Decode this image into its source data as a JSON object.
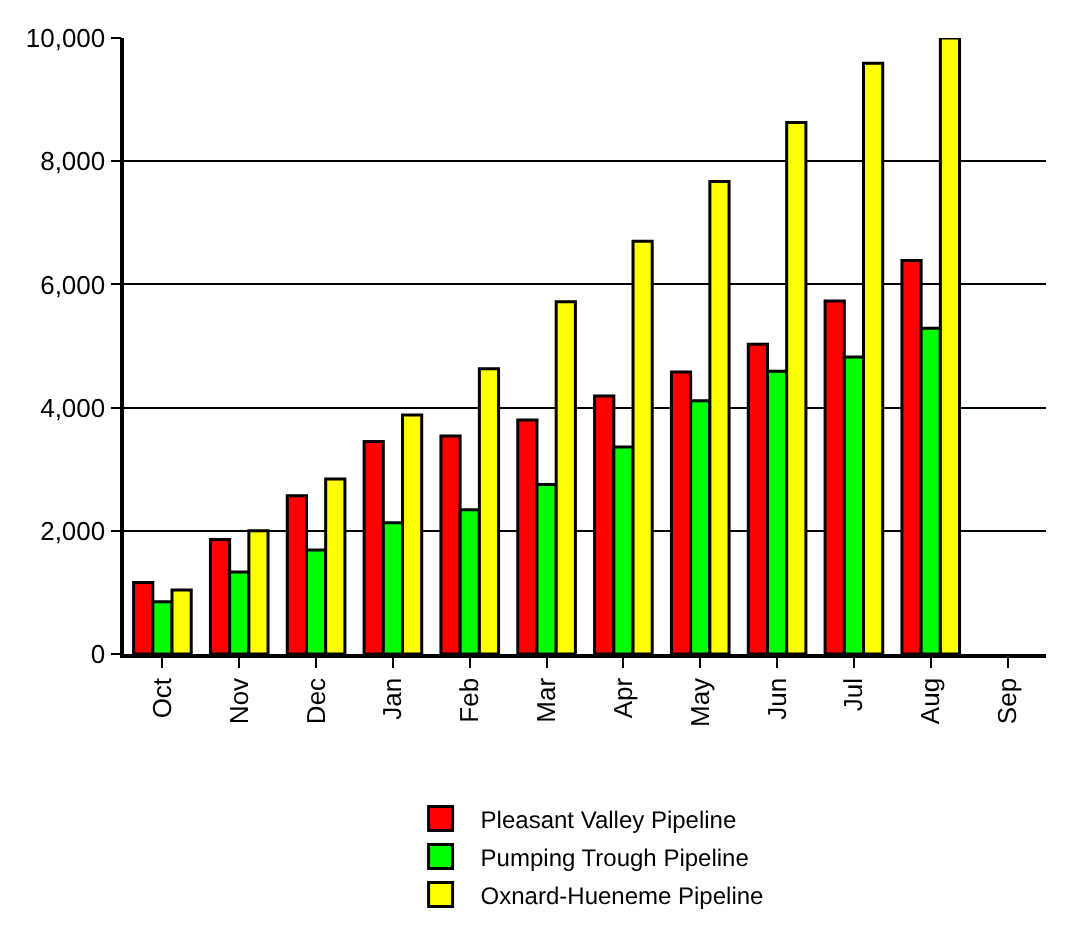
{
  "chart_data": {
    "type": "bar",
    "categories": [
      "Oct",
      "Nov",
      "Dec",
      "Jan",
      "Feb",
      "Mar",
      "Apr",
      "May",
      "Jun",
      "Jul",
      "Aug",
      "Sep"
    ],
    "series": [
      {
        "name": "Pleasant Valley Pipeline",
        "color": "#ff0000",
        "values": [
          1160,
          1860,
          2570,
          3450,
          3540,
          3800,
          4190,
          4580,
          5030,
          5730,
          6390,
          null
        ]
      },
      {
        "name": "Pumping Trough Pipeline",
        "color": "#00ff00",
        "values": [
          850,
          1330,
          1690,
          2130,
          2340,
          2750,
          3360,
          4110,
          4590,
          4820,
          5290,
          null
        ]
      },
      {
        "name": "Oxnard-Hueneme Pipeline",
        "color": "#ffff00",
        "values": [
          1040,
          2000,
          2840,
          3880,
          4630,
          5720,
          6700,
          7670,
          8630,
          9590,
          10000,
          null
        ]
      }
    ],
    "ylim": [
      0,
      10000
    ],
    "yticks": [
      {
        "value": 0,
        "label": "0"
      },
      {
        "value": 2000,
        "label": "2,000"
      },
      {
        "value": 4000,
        "label": "4,000"
      },
      {
        "value": 6000,
        "label": "6,000"
      },
      {
        "value": 8000,
        "label": "8,000"
      },
      {
        "value": 10000,
        "label": "10,000"
      }
    ],
    "grid": "y",
    "legend": "bottom"
  }
}
